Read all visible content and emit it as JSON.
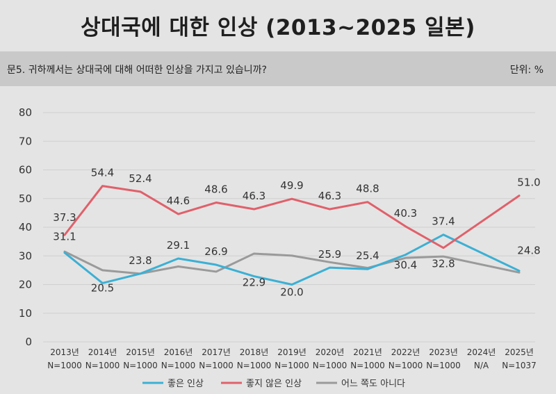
{
  "title": "상대국에 대한 인상 (2013~2025 일본)",
  "question": "문5. 귀하께서는 상대국에 대해 어떠한 인상을 가지고 있습니까?",
  "unit": "단위: %",
  "colors": {
    "good": "#3bb0d4",
    "bad": "#e0606a",
    "neutral": "#9a9a9a",
    "grid": "#cfcfcf",
    "text": "#333333"
  },
  "chart_data": {
    "type": "line",
    "ylim": [
      0,
      80
    ],
    "yticks": [
      "0",
      "10",
      "20",
      "30",
      "40",
      "50",
      "60",
      "70",
      "80"
    ],
    "categories": [
      "2013년",
      "2014년",
      "2015년",
      "2016년",
      "2017년",
      "2018년",
      "2019년",
      "2020년",
      "2021년",
      "2022년",
      "2023년",
      "2024년",
      "2025년"
    ],
    "sample_sizes": [
      "N=1000",
      "N=1000",
      "N=1000",
      "N=1000",
      "N=1000",
      "N=1000",
      "N=1000",
      "N=1000",
      "N=1000",
      "N=1000",
      "N=1000",
      "N/A",
      "N=1037"
    ],
    "series": [
      {
        "name": "좋은 인상",
        "color_key": "good",
        "values": [
          31.1,
          20.5,
          23.8,
          29.1,
          26.9,
          22.9,
          20.0,
          25.9,
          25.4,
          30.4,
          37.4,
          null,
          24.8
        ],
        "labels": [
          "31.1",
          "20.5",
          "23.8",
          "29.1",
          "26.9",
          "22.9",
          "20.0",
          "25.9",
          "25.4",
          "30.4",
          "37.4",
          "",
          "24.8"
        ]
      },
      {
        "name": "좋지 않은 인상",
        "color_key": "bad",
        "values": [
          37.3,
          54.4,
          52.4,
          44.6,
          48.6,
          46.3,
          49.9,
          46.3,
          48.8,
          40.3,
          32.8,
          null,
          51.0
        ],
        "labels": [
          "37.3",
          "54.4",
          "52.4",
          "44.6",
          "48.6",
          "46.3",
          "49.9",
          "46.3",
          "48.8",
          "40.3",
          "32.8",
          "",
          "51.0"
        ]
      },
      {
        "name": "어느 쪽도 아니다",
        "color_key": "neutral",
        "values": [
          31.5,
          25.0,
          23.8,
          26.3,
          24.5,
          30.8,
          30.1,
          27.8,
          25.8,
          29.3,
          29.8,
          null,
          24.2
        ],
        "labels": []
      }
    ]
  }
}
